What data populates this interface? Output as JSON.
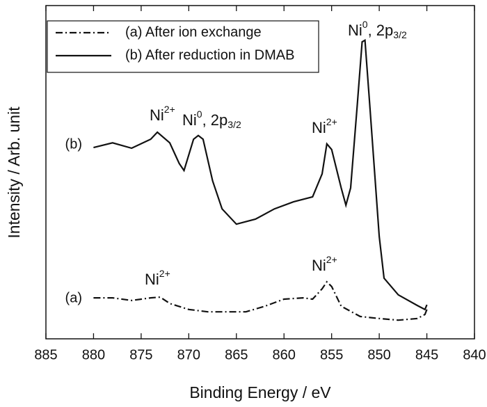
{
  "chart_data": {
    "type": "line",
    "xlabel": "Binding Energy / eV",
    "ylabel": "Intensity / Arb. unit",
    "xlim": [
      885,
      840
    ],
    "xticks": [
      885,
      880,
      875,
      870,
      865,
      860,
      855,
      850,
      845,
      840
    ],
    "ylim": [
      0,
      100
    ],
    "legend": "upper left",
    "series": [
      {
        "name": "(a) After ion exchange",
        "label": "(a)",
        "color": "#111111",
        "linestyle": "dash-dot",
        "x": [
          880,
          878,
          876,
          874,
          873,
          872,
          870,
          868,
          866,
          864,
          862,
          860,
          858,
          857,
          856,
          855.5,
          855,
          854,
          852,
          850,
          848,
          846,
          845.2,
          845
        ],
        "values": [
          12.3,
          12.3,
          11.5,
          12.3,
          12.5,
          10.6,
          8.8,
          8.1,
          8.1,
          8.1,
          9.8,
          11.9,
          12.3,
          11.9,
          15.0,
          17.1,
          15.7,
          9.8,
          6.7,
          6.1,
          5.6,
          6.1,
          7.3,
          8.8
        ]
      },
      {
        "name": "(b) After reduction in DMAB",
        "label": "(b)",
        "color": "#111111",
        "linestyle": "solid",
        "x": [
          880,
          878,
          876,
          874,
          873.3,
          872,
          871,
          870.5,
          869.5,
          869,
          868.5,
          867.5,
          866.5,
          865,
          863,
          861,
          859,
          857,
          856,
          855.5,
          855,
          854,
          853.5,
          853,
          852.3,
          851.8,
          851.5,
          851,
          850,
          849.5,
          848,
          846,
          845.2,
          845
        ],
        "values": [
          57.4,
          58.8,
          57.2,
          59.9,
          62.0,
          58.8,
          52.6,
          50.5,
          59.9,
          61.0,
          59.9,
          47.4,
          39.0,
          34.4,
          35.9,
          39.0,
          41.1,
          42.6,
          49.5,
          58.5,
          56.8,
          45.3,
          40.1,
          45.3,
          70.4,
          89.1,
          89.6,
          70.4,
          30.7,
          18.2,
          13.2,
          10.0,
          8.8,
          10.2
        ]
      }
    ],
    "annotations": [
      {
        "base": "Ni",
        "sup": "0",
        "tail": ", 2p",
        "sub": "3/2"
      },
      {
        "base": "Ni",
        "sup": "2+"
      },
      {
        "base": "Ni",
        "sup": "0",
        "tail": ", 2p",
        "sub": "3/2"
      },
      {
        "base": "Ni",
        "sup": "2+"
      },
      {
        "base": "Ni",
        "sup": "2+"
      },
      {
        "base": "Ni",
        "sup": "2+"
      }
    ]
  }
}
